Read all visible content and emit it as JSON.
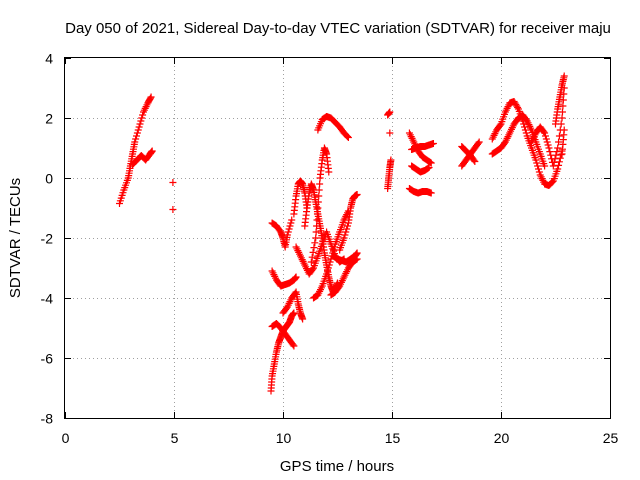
{
  "chart_data": {
    "type": "scatter",
    "title": "Day 050 of 2021, Sidereal Day-to-day VTEC variation (SDTVAR) for receiver maju",
    "xlabel": "GPS time / hours",
    "ylabel": "SDTVAR / TECUs",
    "xlim": [
      0,
      25
    ],
    "ylim": [
      -8,
      4
    ],
    "xticks": [
      "0",
      "5",
      "10",
      "15",
      "20",
      "25"
    ],
    "yticks": [
      "-8",
      "-6",
      "-4",
      "-2",
      "0",
      "2",
      "4"
    ],
    "grid": true,
    "marker": "+",
    "color": "#ff0000",
    "segments": [
      {
        "x": [
          2.5,
          2.7,
          2.9,
          3.0,
          3.1,
          3.2,
          3.4,
          3.6,
          3.8,
          3.95
        ],
        "y": [
          -0.85,
          -0.4,
          0.0,
          0.4,
          0.8,
          1.2,
          1.7,
          2.2,
          2.5,
          2.7
        ]
      },
      {
        "x": [
          3.1,
          3.3,
          3.5,
          3.7,
          3.9,
          4.0
        ],
        "y": [
          0.45,
          0.6,
          0.75,
          0.6,
          0.8,
          0.9
        ]
      },
      {
        "x": [
          4.95
        ],
        "y": [
          -0.15
        ]
      },
      {
        "x": [
          4.95
        ],
        "y": [
          -1.05
        ]
      },
      {
        "x": [
          9.45,
          9.5,
          9.6,
          9.7,
          9.8,
          9.9,
          10.0,
          10.1,
          10.2,
          10.3,
          10.4,
          10.5
        ],
        "y": [
          -7.1,
          -6.6,
          -6.2,
          -5.8,
          -5.5,
          -5.3,
          -5.1,
          -5.0,
          -4.9,
          -4.8,
          -4.6,
          -4.5
        ]
      },
      {
        "x": [
          9.5,
          9.7,
          9.9,
          10.1,
          10.3,
          10.5
        ],
        "y": [
          -4.95,
          -4.85,
          -5.0,
          -5.2,
          -5.4,
          -5.6
        ]
      },
      {
        "x": [
          9.5,
          9.7,
          9.9,
          10.1,
          10.3,
          10.5,
          10.6
        ],
        "y": [
          -3.1,
          -3.4,
          -3.6,
          -3.55,
          -3.5,
          -3.4,
          -3.3
        ]
      },
      {
        "x": [
          9.5,
          9.7,
          9.9,
          10.0,
          10.1,
          10.2,
          10.4
        ],
        "y": [
          -1.5,
          -1.6,
          -1.8,
          -2.0,
          -2.3,
          -1.9,
          -1.4
        ]
      },
      {
        "x": [
          10.0,
          10.2,
          10.4,
          10.6,
          10.7,
          10.8,
          10.9
        ],
        "y": [
          -4.5,
          -4.3,
          -4.0,
          -3.8,
          -4.2,
          -4.5,
          -4.7
        ]
      },
      {
        "x": [
          10.5,
          10.6,
          10.7,
          10.8,
          10.9,
          11.0,
          11.1
        ],
        "y": [
          -1.2,
          -0.6,
          -0.2,
          -0.1,
          -0.2,
          -0.5,
          -1.0
        ]
      },
      {
        "x": [
          10.6,
          10.8,
          11.0,
          11.2,
          11.4,
          11.6,
          11.8,
          12.0,
          12.2,
          12.4,
          12.6,
          12.8
        ],
        "y": [
          -2.3,
          -2.6,
          -2.9,
          -3.2,
          -3.0,
          -2.6,
          -2.2,
          -1.8,
          -2.2,
          -2.6,
          -2.8,
          -2.7
        ]
      },
      {
        "x": [
          11.0,
          11.1,
          11.2,
          11.3,
          11.4,
          11.5,
          11.6,
          11.7,
          11.8,
          11.9,
          12.0,
          12.1,
          12.2,
          12.3,
          12.4,
          12.5
        ],
        "y": [
          -1.6,
          -1.0,
          -0.5,
          -0.2,
          -0.4,
          -0.8,
          -1.2,
          -1.6,
          -2.0,
          -2.5,
          -2.9,
          -3.3,
          -3.6,
          -3.8,
          -3.7,
          -3.5
        ]
      },
      {
        "x": [
          11.3,
          11.5,
          11.6,
          11.7,
          11.8,
          11.9,
          12.0,
          12.1
        ],
        "y": [
          -2.8,
          -2.0,
          -1.0,
          0.0,
          0.6,
          1.0,
          0.8,
          0.2
        ]
      },
      {
        "x": [
          11.4,
          11.6,
          11.8,
          12.0,
          12.2,
          12.4,
          12.6,
          12.8,
          13.0
        ],
        "y": [
          -4.0,
          -3.9,
          -3.6,
          -3.2,
          -2.7,
          -2.2,
          -1.8,
          -1.4,
          -1.1
        ]
      },
      {
        "x": [
          11.6,
          11.8,
          12.0,
          12.2,
          12.4,
          12.6,
          12.8,
          13.0
        ],
        "y": [
          1.6,
          1.95,
          2.05,
          2.0,
          1.85,
          1.7,
          1.5,
          1.35
        ]
      },
      {
        "x": [
          12.2,
          12.4,
          12.6,
          12.8,
          13.0,
          13.2,
          13.4
        ],
        "y": [
          -3.9,
          -3.8,
          -3.6,
          -3.3,
          -3.0,
          -2.8,
          -2.7
        ]
      },
      {
        "x": [
          12.6,
          12.8,
          13.0,
          13.1,
          13.2,
          13.3,
          13.4
        ],
        "y": [
          -2.4,
          -2.0,
          -1.5,
          -1.0,
          -0.7,
          -0.6,
          -0.55
        ]
      },
      {
        "x": [
          12.3,
          12.5,
          12.7,
          12.9,
          13.1,
          13.3,
          13.4
        ],
        "y": [
          -2.6,
          -2.7,
          -2.75,
          -2.8,
          -2.7,
          -2.6,
          -2.5
        ]
      },
      {
        "x": [
          14.8,
          14.85,
          14.9,
          14.95
        ],
        "y": [
          -0.35,
          0.0,
          0.35,
          0.6
        ]
      },
      {
        "x": [
          14.8,
          14.9
        ],
        "y": [
          2.1,
          2.2
        ]
      },
      {
        "x": [
          14.9
        ],
        "y": [
          1.5
        ]
      },
      {
        "x": [
          15.8,
          16.0,
          16.2,
          16.4,
          16.6,
          16.8
        ],
        "y": [
          -0.35,
          -0.45,
          -0.5,
          -0.45,
          -0.45,
          -0.5
        ]
      },
      {
        "x": [
          15.8,
          16.0,
          16.2,
          16.4,
          16.6,
          16.8
        ],
        "y": [
          1.5,
          1.2,
          0.9,
          0.7,
          0.6,
          0.5
        ]
      },
      {
        "x": [
          15.9,
          16.1,
          16.3,
          16.5,
          16.7,
          16.9
        ],
        "y": [
          0.95,
          1.0,
          1.05,
          1.05,
          1.1,
          1.15
        ]
      },
      {
        "x": [
          15.9,
          16.1,
          16.3,
          16.5,
          16.7
        ],
        "y": [
          0.4,
          0.3,
          0.2,
          0.25,
          0.35
        ]
      },
      {
        "x": [
          18.2,
          18.4,
          18.6,
          18.8,
          19.0
        ],
        "y": [
          0.4,
          0.6,
          0.8,
          1.0,
          1.2
        ]
      },
      {
        "x": [
          18.2,
          18.4,
          18.6,
          18.8
        ],
        "y": [
          1.05,
          0.9,
          0.75,
          0.55
        ]
      },
      {
        "x": [
          19.6,
          19.8,
          20.0,
          20.2,
          20.4,
          20.6,
          20.8,
          21.0,
          21.2,
          21.4,
          21.6,
          21.8,
          22.0,
          22.2,
          22.4,
          22.6,
          22.8
        ],
        "y": [
          1.3,
          1.6,
          1.8,
          2.2,
          2.5,
          2.55,
          2.3,
          1.9,
          1.4,
          1.0,
          0.6,
          0.1,
          -0.2,
          -0.25,
          -0.1,
          0.3,
          0.9
        ]
      },
      {
        "x": [
          19.6,
          19.8,
          20.0,
          20.2,
          20.4,
          20.6,
          20.8,
          21.0,
          21.2,
          21.4,
          21.6,
          21.8,
          22.0
        ],
        "y": [
          0.8,
          0.9,
          1.0,
          1.2,
          1.5,
          1.8,
          2.0,
          2.1,
          1.9,
          1.6,
          1.2,
          0.8,
          0.4
        ]
      },
      {
        "x": [
          21.4,
          21.6,
          21.8,
          22.0,
          22.2,
          22.4,
          22.6,
          22.8,
          22.9
        ],
        "y": [
          1.2,
          1.5,
          1.7,
          1.5,
          1.0,
          0.4,
          1.0,
          2.0,
          3.0
        ]
      },
      {
        "x": [
          22.5,
          22.6,
          22.7,
          22.8,
          22.9
        ],
        "y": [
          1.8,
          2.3,
          2.7,
          3.1,
          3.4
        ]
      },
      {
        "x": [
          22.8,
          22.9
        ],
        "y": [
          0.8,
          1.6
        ]
      }
    ]
  }
}
